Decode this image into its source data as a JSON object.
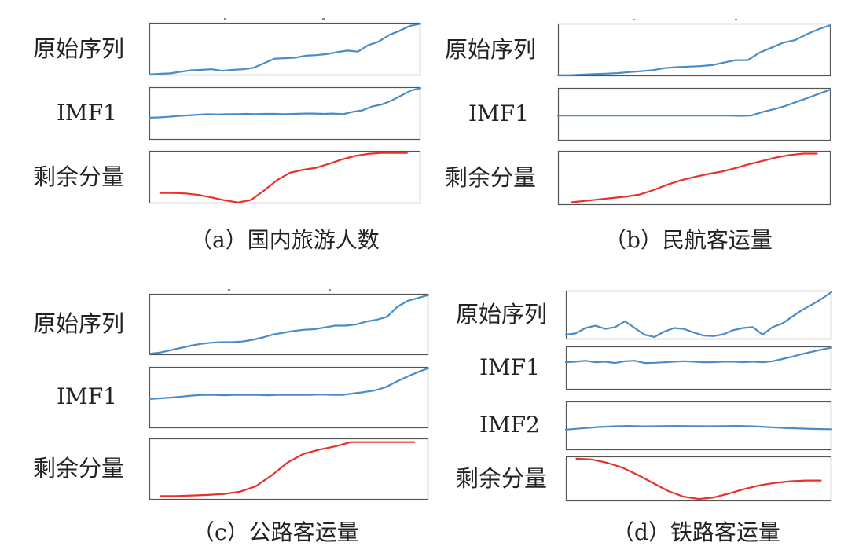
{
  "panels": [
    {
      "caption": "（a）国内旅游人数",
      "rows": [
        {
          "label": "原始序列",
          "kind": "series",
          "values": [
            0.0,
            0.01,
            0.02,
            0.05,
            0.08,
            0.09,
            0.1,
            0.07,
            0.09,
            0.1,
            0.13,
            0.22,
            0.31,
            0.32,
            0.33,
            0.37,
            0.38,
            0.4,
            0.44,
            0.47,
            0.45,
            0.58,
            0.65,
            0.78,
            0.86,
            0.96,
            1.0
          ]
        },
        {
          "label": "IMF1",
          "kind": "series",
          "values": [
            0.0,
            0.01,
            0.03,
            0.06,
            0.08,
            0.1,
            0.12,
            0.11,
            0.12,
            0.12,
            0.13,
            0.12,
            0.13,
            0.13,
            0.12,
            0.13,
            0.14,
            0.14,
            0.13,
            0.14,
            0.12,
            0.2,
            0.25,
            0.38,
            0.45,
            0.58,
            0.75,
            0.92,
            1.0
          ]
        },
        {
          "label": "剩余分量",
          "kind": "residual",
          "values": [
            0.19,
            0.19,
            0.18,
            0.15,
            0.1,
            0.04,
            0.0,
            0.05,
            0.24,
            0.45,
            0.6,
            0.66,
            0.7,
            0.78,
            0.87,
            0.94,
            0.98,
            1.0,
            1.0,
            1.0
          ]
        }
      ]
    },
    {
      "caption": "（b）民航客运量",
      "rows": [
        {
          "label": "原始序列",
          "kind": "series",
          "values": [
            0.0,
            0.0,
            0.01,
            0.02,
            0.03,
            0.04,
            0.06,
            0.08,
            0.1,
            0.14,
            0.16,
            0.17,
            0.18,
            0.2,
            0.25,
            0.3,
            0.3,
            0.45,
            0.55,
            0.65,
            0.7,
            0.82,
            0.92,
            1.0
          ]
        },
        {
          "label": "IMF1",
          "kind": "series",
          "values": [
            0.05,
            0.05,
            0.05,
            0.05,
            0.05,
            0.05,
            0.05,
            0.05,
            0.05,
            0.05,
            0.05,
            0.05,
            0.05,
            0.05,
            0.05,
            0.05,
            0.04,
            0.05,
            0.18,
            0.28,
            0.4,
            0.55,
            0.7,
            0.85,
            1.0
          ]
        },
        {
          "label": "剩余分量",
          "kind": "residual",
          "values": [
            0.0,
            0.03,
            0.06,
            0.09,
            0.12,
            0.16,
            0.25,
            0.36,
            0.45,
            0.52,
            0.58,
            0.63,
            0.7,
            0.78,
            0.85,
            0.92,
            0.97,
            1.0,
            1.0
          ]
        }
      ]
    },
    {
      "caption": "（c）公路客运量",
      "rows": [
        {
          "label": "原始序列",
          "kind": "series",
          "values": [
            0.0,
            0.02,
            0.06,
            0.1,
            0.14,
            0.17,
            0.19,
            0.2,
            0.2,
            0.21,
            0.24,
            0.28,
            0.33,
            0.36,
            0.39,
            0.41,
            0.42,
            0.45,
            0.48,
            0.48,
            0.5,
            0.55,
            0.58,
            0.63,
            0.8,
            0.9,
            0.95,
            1.0
          ]
        },
        {
          "label": "IMF1",
          "kind": "series",
          "values": [
            0.1,
            0.12,
            0.14,
            0.17,
            0.2,
            0.22,
            0.22,
            0.21,
            0.22,
            0.22,
            0.22,
            0.21,
            0.22,
            0.22,
            0.22,
            0.22,
            0.23,
            0.22,
            0.22,
            0.26,
            0.3,
            0.35,
            0.44,
            0.6,
            0.75,
            0.88,
            1.0
          ]
        },
        {
          "label": "剩余分量",
          "kind": "residual",
          "values": [
            0.0,
            0.0,
            0.01,
            0.02,
            0.04,
            0.08,
            0.18,
            0.38,
            0.62,
            0.78,
            0.86,
            0.92,
            1.0,
            1.0,
            1.0,
            1.0,
            1.0
          ]
        }
      ]
    },
    {
      "caption": "（d）铁路客运量",
      "rows": [
        {
          "label": "原始序列",
          "kind": "series",
          "values": [
            0.05,
            0.08,
            0.2,
            0.25,
            0.18,
            0.22,
            0.35,
            0.2,
            0.05,
            0.0,
            0.12,
            0.2,
            0.18,
            0.1,
            0.03,
            0.02,
            0.06,
            0.15,
            0.2,
            0.22,
            0.05,
            0.22,
            0.3,
            0.45,
            0.6,
            0.72,
            0.85,
            1.0
          ]
        },
        {
          "label": "IMF1",
          "kind": "series",
          "values": [
            0.35,
            0.38,
            0.42,
            0.35,
            0.38,
            0.32,
            0.4,
            0.42,
            0.32,
            0.33,
            0.35,
            0.38,
            0.4,
            0.38,
            0.35,
            0.36,
            0.38,
            0.38,
            0.36,
            0.38,
            0.35,
            0.4,
            0.5,
            0.6,
            0.72,
            0.82,
            0.92,
            1.0
          ]
        },
        {
          "label": "IMF2",
          "kind": "series",
          "values": [
            0.25,
            0.4,
            0.55,
            0.65,
            0.7,
            0.65,
            0.68,
            0.7,
            0.68,
            0.66,
            0.68,
            0.7,
            0.65,
            0.55,
            0.45,
            0.38,
            0.33,
            0.3
          ]
        },
        {
          "label": "剩余分量",
          "kind": "residual",
          "values": [
            1.0,
            0.98,
            0.9,
            0.78,
            0.6,
            0.4,
            0.2,
            0.06,
            0.0,
            0.04,
            0.14,
            0.25,
            0.34,
            0.4,
            0.44,
            0.46,
            0.46
          ]
        }
      ]
    }
  ]
}
